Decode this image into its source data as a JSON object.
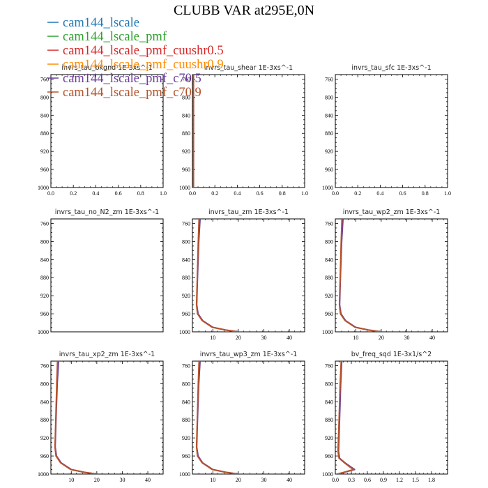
{
  "title": "CLUBB VAR at295E,0N",
  "legend": {
    "placement": "top-left",
    "entries": [
      {
        "label": "cam144_lscale",
        "color": "#1f77b4"
      },
      {
        "label": "cam144_lscale_pmf",
        "color": "#2ca02c"
      },
      {
        "label": "cam144_lscale_pmf_cuushr0.5",
        "color": "#d62728"
      },
      {
        "label": "cam144_lscale_pmf_cuushr0.9",
        "color": "#ff8c00"
      },
      {
        "label": "cam144_lscale_pmf_c70.5",
        "color": "#6a3d9a"
      },
      {
        "label": "cam144_lscale_pmf_c70.9",
        "color": "#b5522b"
      }
    ]
  },
  "chart_data": [
    {
      "type": "line",
      "title": "invrs_tau_bkgnd   1E-3xs^-1",
      "xlim": [
        0,
        1
      ],
      "ylim": [
        1000,
        750
      ],
      "xticks": [
        "0.0",
        "0.2",
        "0.4",
        "0.6",
        "0.8",
        "1.0"
      ],
      "yticks": [
        "760",
        "800",
        "840",
        "880",
        "920",
        "960",
        "1000"
      ],
      "grid": false,
      "series": []
    },
    {
      "type": "line",
      "title": "invrs_tau_shear   1E-3xs^-1",
      "xlim": [
        0,
        1
      ],
      "ylim": [
        1000,
        750
      ],
      "xticks": [
        "0.0",
        "0.2",
        "0.4",
        "0.6",
        "0.8",
        "1.0"
      ],
      "yticks": [
        "760",
        "800",
        "840",
        "880",
        "920",
        "960",
        "1000"
      ],
      "grid": false,
      "series": [
        {
          "color": "#b5522b",
          "points": [
            [
              0.01,
              750
            ],
            [
              0.01,
              850
            ],
            [
              0.01,
              950
            ],
            [
              0.01,
              1000
            ]
          ]
        }
      ]
    },
    {
      "type": "line",
      "title": "invrs_tau_sfc   1E-3xs^-1",
      "xlim": [
        0,
        1
      ],
      "ylim": [
        1000,
        750
      ],
      "xticks": [
        "0.0",
        "0.2",
        "0.4",
        "0.6",
        "0.8",
        "1.0"
      ],
      "yticks": [
        "760",
        "800",
        "840",
        "880",
        "920",
        "960",
        "1000"
      ],
      "grid": false,
      "series": []
    },
    {
      "type": "line",
      "title": "invrs_tau_no_N2_zm   1E-3xs^-1",
      "xlim": [
        0,
        1
      ],
      "ylim": [
        1000,
        750
      ],
      "xticks": [],
      "yticks": [
        "760",
        "800",
        "840",
        "880",
        "920",
        "960",
        "1000"
      ],
      "grid": false,
      "series": []
    },
    {
      "type": "line",
      "title": "invrs_tau_zm   1E-3xs^-1",
      "xlim": [
        2,
        46
      ],
      "ylim": [
        1000,
        750
      ],
      "xticks": [
        "10",
        "20",
        "30",
        "40"
      ],
      "yticks": [
        "760",
        "800",
        "840",
        "880",
        "920",
        "960",
        "1000"
      ],
      "grid": false,
      "series": [
        {
          "color": "#6a3d9a",
          "points": [
            [
              5.0,
              750
            ],
            [
              4.5,
              800
            ],
            [
              4.0,
              880
            ],
            [
              3.7,
              940
            ],
            [
              4.2,
              960
            ],
            [
              6.0,
              975
            ],
            [
              10.0,
              990
            ],
            [
              15.0,
              996
            ],
            [
              20.0,
              1000
            ]
          ]
        },
        {
          "color": "#b5522b",
          "points": [
            [
              4.6,
              750
            ],
            [
              4.3,
              800
            ],
            [
              3.9,
              880
            ],
            [
              3.6,
              940
            ],
            [
              4.0,
              960
            ],
            [
              5.8,
              975
            ],
            [
              9.8,
              990
            ],
            [
              15.0,
              996
            ],
            [
              20.0,
              1000
            ]
          ]
        }
      ]
    },
    {
      "type": "line",
      "title": "invrs_tau_wp2_zm   1E-3xs^-1",
      "xlim": [
        2,
        46
      ],
      "ylim": [
        1000,
        750
      ],
      "xticks": [
        "10",
        "20",
        "30",
        "40"
      ],
      "yticks": [
        "760",
        "800",
        "840",
        "880",
        "920",
        "960",
        "1000"
      ],
      "grid": false,
      "series": [
        {
          "color": "#6a3d9a",
          "points": [
            [
              5.0,
              750
            ],
            [
              4.5,
              800
            ],
            [
              4.0,
              880
            ],
            [
              3.7,
              940
            ],
            [
              4.2,
              960
            ],
            [
              6.0,
              975
            ],
            [
              10.0,
              990
            ],
            [
              15.0,
              996
            ],
            [
              20.0,
              1000
            ]
          ]
        },
        {
          "color": "#b5522b",
          "points": [
            [
              4.6,
              750
            ],
            [
              4.3,
              800
            ],
            [
              3.9,
              880
            ],
            [
              3.6,
              940
            ],
            [
              4.0,
              960
            ],
            [
              5.8,
              975
            ],
            [
              9.8,
              990
            ],
            [
              15.0,
              996
            ],
            [
              20.0,
              1000
            ]
          ]
        }
      ]
    },
    {
      "type": "line",
      "title": "invrs_tau_xp2_zm   1E-3xs^-1",
      "xlim": [
        2,
        46
      ],
      "ylim": [
        1000,
        750
      ],
      "xticks": [
        "10",
        "20",
        "30",
        "40"
      ],
      "yticks": [
        "760",
        "800",
        "840",
        "880",
        "920",
        "960",
        "1000"
      ],
      "grid": false,
      "series": [
        {
          "color": "#6a3d9a",
          "points": [
            [
              5.0,
              750
            ],
            [
              4.5,
              800
            ],
            [
              4.0,
              880
            ],
            [
              3.7,
              940
            ],
            [
              4.2,
              960
            ],
            [
              6.0,
              975
            ],
            [
              10.0,
              990
            ],
            [
              15.0,
              996
            ],
            [
              20.0,
              1000
            ]
          ]
        },
        {
          "color": "#b5522b",
          "points": [
            [
              4.6,
              750
            ],
            [
              4.3,
              800
            ],
            [
              3.9,
              880
            ],
            [
              3.6,
              940
            ],
            [
              4.0,
              960
            ],
            [
              5.8,
              975
            ],
            [
              9.8,
              990
            ],
            [
              15.0,
              996
            ],
            [
              20.0,
              1000
            ]
          ]
        }
      ]
    },
    {
      "type": "line",
      "title": "invrs_tau_wp3_zm   1E-3xs^-1",
      "xlim": [
        2,
        46
      ],
      "ylim": [
        1000,
        750
      ],
      "xticks": [
        "10",
        "20",
        "30",
        "40"
      ],
      "yticks": [
        "760",
        "800",
        "840",
        "880",
        "920",
        "960",
        "1000"
      ],
      "grid": false,
      "series": [
        {
          "color": "#6a3d9a",
          "points": [
            [
              5.0,
              750
            ],
            [
              4.5,
              800
            ],
            [
              4.0,
              880
            ],
            [
              3.7,
              940
            ],
            [
              4.2,
              960
            ],
            [
              6.0,
              975
            ],
            [
              10.0,
              990
            ],
            [
              15.0,
              996
            ],
            [
              20.0,
              1000
            ]
          ]
        },
        {
          "color": "#b5522b",
          "points": [
            [
              4.6,
              750
            ],
            [
              4.3,
              800
            ],
            [
              3.9,
              880
            ],
            [
              3.6,
              940
            ],
            [
              4.0,
              960
            ],
            [
              5.8,
              975
            ],
            [
              9.8,
              990
            ],
            [
              15.0,
              996
            ],
            [
              20.0,
              1000
            ]
          ]
        }
      ]
    },
    {
      "type": "line",
      "title": "bv_freq_sqd   1E-3x1/s^2",
      "xlim": [
        0,
        2.1
      ],
      "ylim": [
        1000,
        750
      ],
      "xticks": [
        "0.0",
        "0.3",
        "0.6",
        "0.9",
        "1.2",
        "1.5",
        "1.8"
      ],
      "yticks": [
        "760",
        "800",
        "840",
        "880",
        "920",
        "960",
        "1000"
      ],
      "grid": false,
      "series": [
        {
          "color": "#6a3d9a",
          "points": [
            [
              0.12,
              750
            ],
            [
              0.1,
              800
            ],
            [
              0.08,
              880
            ],
            [
              0.06,
              950
            ],
            [
              0.08,
              965
            ],
            [
              0.18,
              975
            ],
            [
              0.3,
              985
            ],
            [
              0.36,
              990
            ],
            [
              0.2,
              995
            ],
            [
              0.05,
              1000
            ]
          ]
        },
        {
          "color": "#b5522b",
          "points": [
            [
              0.11,
              750
            ],
            [
              0.09,
              800
            ],
            [
              0.07,
              880
            ],
            [
              0.05,
              950
            ],
            [
              0.07,
              965
            ],
            [
              0.17,
              975
            ],
            [
              0.28,
              985
            ],
            [
              0.34,
              990
            ],
            [
              0.19,
              995
            ],
            [
              0.04,
              1000
            ]
          ]
        }
      ]
    }
  ]
}
